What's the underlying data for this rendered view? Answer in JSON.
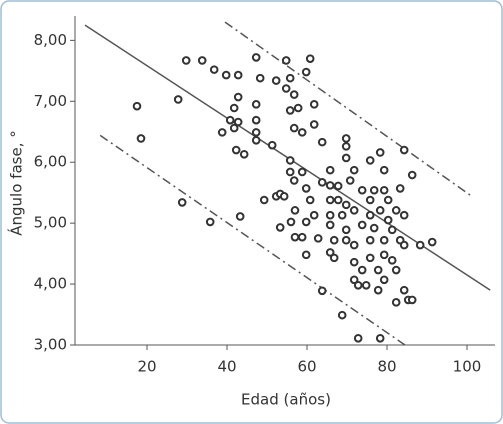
{
  "chart_data": {
    "type": "scatter",
    "xlabel": "Edad (años)",
    "ylabel": "Ángulo fase, °",
    "xlim": [
      2,
      107
    ],
    "ylim": [
      3,
      8.4
    ],
    "xticks": [
      20,
      40,
      60,
      80,
      100
    ],
    "yticks": [
      {
        "value": 3,
        "label": "3,00"
      },
      {
        "value": 4,
        "label": "4,00"
      },
      {
        "value": 5,
        "label": "5,00"
      },
      {
        "value": 6,
        "label": "6,00"
      },
      {
        "value": 7,
        "label": "7,00"
      },
      {
        "value": 8,
        "label": "8,00"
      }
    ],
    "color": "#333333",
    "x": [
      17.5,
      18.5,
      27.8,
      28.8,
      29.8,
      33.8,
      35.8,
      36.8,
      39.8,
      38.8,
      40.8,
      42.8,
      42.8,
      41.8,
      41.8,
      42.8,
      42.3,
      44.3,
      43.3,
      47.3,
      48.3,
      47.3,
      47.3,
      47.3,
      47.3,
      51.3,
      52.3,
      49.3,
      52.3,
      53.3,
      53.3,
      54.8,
      55.8,
      54.8,
      56.8,
      55.8,
      57.8,
      56.8,
      58.8,
      55.8,
      55.8,
      56.8,
      54.3,
      57.0,
      56.0,
      57.0,
      58.8,
      59.8,
      60.8,
      61.8,
      61.8,
      58.8,
      59.8,
      60.8,
      59.8,
      61.8,
      62.8,
      59.8,
      63.8,
      63.8,
      63.8,
      65.8,
      65.8,
      65.8,
      65.8,
      65.8,
      66.8,
      65.8,
      66.8,
      67.8,
      67.8,
      69.8,
      69.8,
      69.8,
      69.8,
      68.8,
      69.8,
      69.8,
      68.8,
      70.8,
      71.8,
      71.8,
      71.8,
      71.8,
      71.8,
      72.8,
      72.8,
      73.8,
      73.8,
      73.8,
      74.8,
      75.8,
      75.8,
      75.8,
      75.8,
      75.8,
      76.8,
      76.8,
      77.8,
      77.8,
      78.3,
      78.3,
      78.3,
      79.3,
      79.3,
      79.3,
      79.3,
      79.3,
      80.3,
      80.3,
      81.3,
      81.3,
      82.3,
      82.3,
      82.3,
      83.3,
      83.3,
      84.3,
      84.3,
      84.3,
      84.3,
      85.3,
      86.3,
      86.3,
      88.3,
      91.3
    ],
    "values": [
      6.92,
      6.39,
      7.03,
      5.34,
      7.67,
      7.67,
      5.02,
      7.52,
      7.43,
      6.49,
      6.69,
      7.43,
      7.07,
      6.89,
      6.56,
      6.66,
      6.2,
      6.13,
      5.11,
      7.72,
      7.38,
      6.95,
      6.69,
      6.49,
      6.36,
      6.28,
      7.34,
      5.38,
      5.44,
      5.48,
      4.93,
      7.67,
      7.38,
      7.21,
      7.11,
      6.85,
      6.89,
      6.56,
      6.49,
      6.03,
      5.84,
      5.7,
      5.44,
      5.21,
      5.02,
      4.77,
      4.77,
      7.48,
      7.7,
      6.95,
      6.62,
      5.84,
      5.57,
      5.38,
      5.02,
      5.13,
      4.75,
      4.48,
      6.33,
      5.67,
      3.89,
      5.87,
      5.62,
      5.38,
      5.13,
      4.97,
      4.72,
      4.52,
      4.43,
      5.61,
      5.38,
      6.39,
      6.26,
      6.07,
      5.3,
      5.13,
      4.89,
      4.72,
      3.49,
      5.7,
      5.87,
      5.21,
      4.64,
      4.36,
      4.07,
      3.11,
      3.98,
      5.54,
      4.97,
      4.23,
      3.98,
      6.03,
      5.38,
      5.13,
      4.72,
      4.43,
      5.54,
      4.92,
      3.9,
      4.23,
      6.16,
      5.21,
      3.11,
      5.87,
      5.54,
      4.72,
      4.48,
      4.07,
      5.38,
      5.05,
      4.89,
      4.39,
      5.21,
      4.23,
      3.7,
      5.57,
      4.72,
      6.2,
      5.13,
      4.64,
      3.9,
      3.74,
      5.79,
      3.74,
      4.64,
      4.69
    ],
    "lines": [
      {
        "style": "solid",
        "x": [
          4.5,
          105.8
        ],
        "y": [
          8.25,
          3.9
        ]
      },
      {
        "style": "dashdot",
        "x": [
          39.5,
          100.8
        ],
        "y": [
          8.3,
          5.46
        ]
      },
      {
        "style": "dashdot",
        "x": [
          8.3,
          84.5
        ],
        "y": [
          6.44,
          3.0
        ]
      }
    ]
  }
}
